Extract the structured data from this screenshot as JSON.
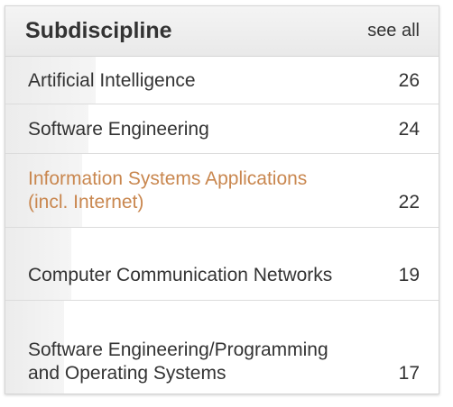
{
  "panel": {
    "title": "Subdiscipline",
    "see_all_label": "see all"
  },
  "items": [
    {
      "label": "Artificial Intelligence",
      "count": "26",
      "share": 1.0
    },
    {
      "label": "Software Engineering",
      "count": "24",
      "share": 0.92
    },
    {
      "label": "Information Systems Applications (incl. Internet)",
      "count": "22",
      "share": 0.85,
      "highlighted": true
    },
    {
      "label": "Computer Communication Networks",
      "count": "19",
      "share": 0.73
    },
    {
      "label": "Software Engineering/Programming and Operating Systems",
      "count": "17",
      "share": 0.65
    }
  ],
  "colors": {
    "text": "#333333",
    "highlight_text": "#c9874f",
    "bar_fill": "#ececec",
    "header_bg": "#eeeeee"
  }
}
